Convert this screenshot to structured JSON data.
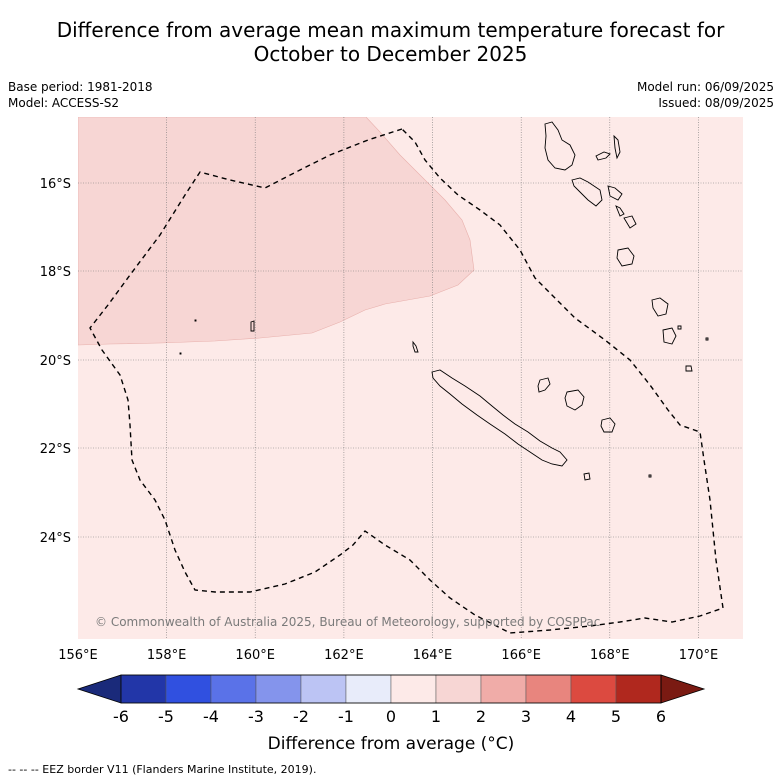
{
  "title_line1": "Difference from average mean maximum temperature forecast for",
  "title_line2": "October to December 2025",
  "base_period": "Base period: 1981-2018",
  "model": "Model: ACCESS-S2",
  "model_run": "Model run: 06/09/2025",
  "issued": "Issued: 08/09/2025",
  "copyright": "© Commonwealth of Australia 2025, Bureau of Meteorology, supported by COSPPac",
  "lon_labels": [
    "156°E",
    "158°E",
    "160°E",
    "162°E",
    "164°E",
    "166°E",
    "168°E",
    "170°E"
  ],
  "lat_labels": [
    "16°S",
    "18°S",
    "20°S",
    "22°S",
    "24°S"
  ],
  "colorbar": {
    "ticks": [
      "-6",
      "-5",
      "-4",
      "-3",
      "-2",
      "-1",
      "0",
      "1",
      "2",
      "3",
      "4",
      "5",
      "6"
    ],
    "colors": [
      "#1a2a7a",
      "#2236a8",
      "#3050e0",
      "#5a72e8",
      "#8494ec",
      "#bcc4f4",
      "#e8ecfa",
      "#fdeae8",
      "#f7d6d4",
      "#f0aca8",
      "#e8857e",
      "#dc4a40",
      "#b0281e",
      "#7a1a12"
    ],
    "label": "Difference from average (°C)"
  },
  "map_colors": {
    "anomaly_0_1": "#fdeae8",
    "anomaly_1_2": "#f7d6d4"
  },
  "footer": "--  --  -- EEZ border V11 (Flanders Marine Institute, 2019)."
}
